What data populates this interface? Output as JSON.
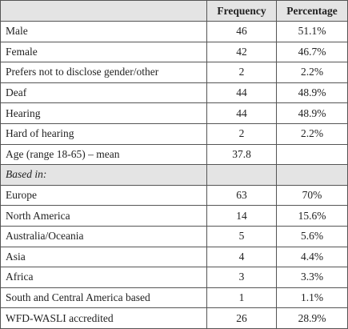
{
  "table": {
    "columns": [
      "Frequency",
      "Percentage"
    ],
    "rows": [
      {
        "cells": [
          "Male",
          46,
          "51.1%"
        ]
      },
      {
        "cells": [
          "Female",
          42,
          "46.7%"
        ]
      },
      {
        "cells": [
          "Prefers not to disclose gender/other",
          2,
          "2.2%"
        ]
      },
      {
        "cells": [
          "Deaf",
          44,
          "48.9%"
        ]
      },
      {
        "cells": [
          "Hearing",
          44,
          "48.9%"
        ]
      },
      {
        "cells": [
          "Hard of hearing",
          2,
          "2.2%"
        ]
      },
      {
        "cells": [
          "Age (range 18-65) – mean",
          37.8
        ]
      },
      {
        "cells": [
          "Based in:"
        ],
        "section": true
      },
      {
        "cells": [
          "Europe",
          63,
          "70%"
        ]
      },
      {
        "cells": [
          "North America",
          14,
          "15.6%"
        ]
      },
      {
        "cells": [
          "Australia/Oceania",
          5,
          "5.6%"
        ]
      },
      {
        "cells": [
          "Asia",
          4,
          "4.4%"
        ]
      },
      {
        "cells": [
          "Africa",
          3,
          "3.3%"
        ]
      },
      {
        "cells": [
          "South and Central America based",
          1,
          "1.1%"
        ]
      },
      {
        "cells": [
          "WFD-WASLI accredited",
          26,
          "28.9%"
        ]
      }
    ]
  }
}
